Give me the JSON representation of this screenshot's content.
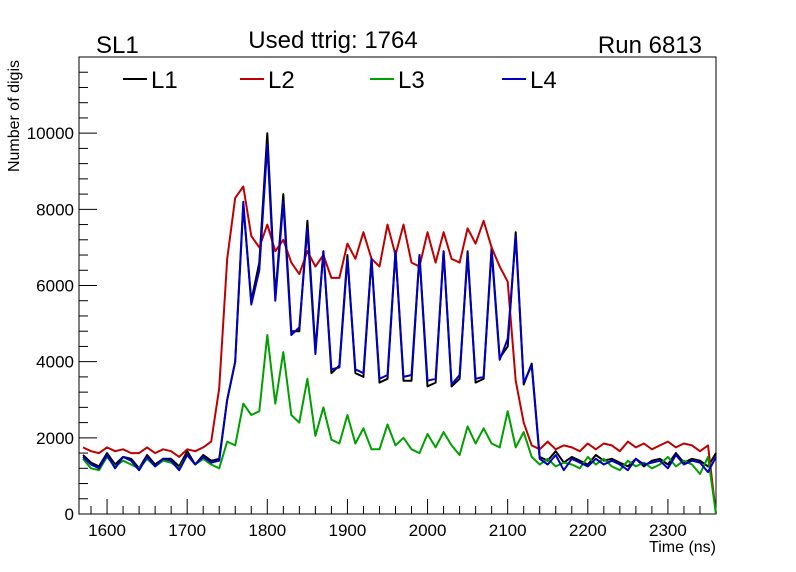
{
  "chart_data": {
    "type": "line",
    "title": "Used ttrig: 1764",
    "top_left_label": "SL1",
    "top_right_label": "Run 6813",
    "xlabel": "Time (ns)",
    "ylabel": "Number of digis",
    "xlim": [
      1565,
      2360
    ],
    "ylim": [
      0,
      12000
    ],
    "x_ticks": [
      1600,
      1700,
      1800,
      1900,
      2000,
      2100,
      2200,
      2300
    ],
    "y_ticks": [
      0,
      2000,
      4000,
      6000,
      8000,
      10000
    ],
    "legend_position": "top",
    "x": [
      1570,
      1580,
      1590,
      1600,
      1610,
      1620,
      1630,
      1640,
      1650,
      1660,
      1670,
      1680,
      1690,
      1700,
      1710,
      1720,
      1730,
      1740,
      1750,
      1760,
      1770,
      1780,
      1790,
      1800,
      1810,
      1820,
      1830,
      1840,
      1850,
      1860,
      1870,
      1880,
      1890,
      1900,
      1910,
      1920,
      1930,
      1940,
      1950,
      1960,
      1970,
      1980,
      1990,
      2000,
      2010,
      2020,
      2030,
      2040,
      2050,
      2060,
      2070,
      2080,
      2090,
      2100,
      2110,
      2120,
      2130,
      2140,
      2150,
      2160,
      2170,
      2180,
      2190,
      2200,
      2210,
      2220,
      2230,
      2240,
      2250,
      2260,
      2270,
      2280,
      2290,
      2300,
      2310,
      2320,
      2330,
      2340,
      2350,
      2360
    ],
    "series": [
      {
        "name": "L1",
        "color": "#000000",
        "values": [
          1550,
          1350,
          1250,
          1600,
          1300,
          1500,
          1450,
          1200,
          1550,
          1300,
          1450,
          1450,
          1250,
          1650,
          1300,
          1550,
          1400,
          1450,
          3000,
          4000,
          8100,
          5600,
          6600,
          10000,
          5700,
          8400,
          4800,
          4800,
          7700,
          4300,
          6900,
          3700,
          3900,
          6800,
          3700,
          3600,
          6700,
          3450,
          3550,
          6900,
          3500,
          3500,
          6800,
          3350,
          3450,
          6900,
          3350,
          3550,
          6900,
          3450,
          3550,
          7000,
          4100,
          4400,
          7400,
          3400,
          3950,
          1500,
          1400,
          1650,
          1350,
          1500,
          1400,
          1300,
          1550,
          1400,
          1450,
          1350,
          1250,
          1450,
          1250,
          1400,
          1450,
          1300,
          1600,
          1350,
          1450,
          1400,
          1250,
          1600
        ]
      },
      {
        "name": "L2",
        "color": "#c00000",
        "values": [
          1750,
          1650,
          1600,
          1750,
          1650,
          1700,
          1600,
          1600,
          1750,
          1600,
          1700,
          1650,
          1500,
          1700,
          1650,
          1750,
          1900,
          3300,
          6700,
          8300,
          8600,
          7300,
          7000,
          7600,
          6900,
          7200,
          6600,
          6300,
          6900,
          6500,
          6800,
          6200,
          6200,
          7100,
          6700,
          7400,
          6700,
          6500,
          7600,
          6800,
          7600,
          6600,
          6500,
          7400,
          6600,
          7400,
          6700,
          6600,
          7500,
          7100,
          7700,
          7000,
          6500,
          6100,
          3500,
          2400,
          1800,
          1700,
          1900,
          1700,
          1800,
          1750,
          1650,
          1850,
          1700,
          1850,
          1800,
          1650,
          1900,
          1750,
          1850,
          1700,
          1800,
          1900,
          1750,
          1850,
          1800,
          1650,
          1800,
          0
        ]
      },
      {
        "name": "L3",
        "color": "#00a000",
        "values": [
          1450,
          1200,
          1150,
          1500,
          1250,
          1400,
          1300,
          1200,
          1450,
          1250,
          1400,
          1350,
          1200,
          1550,
          1300,
          1450,
          1300,
          1200,
          1900,
          1800,
          2900,
          2600,
          2700,
          4700,
          2900,
          4250,
          2600,
          2400,
          3550,
          2050,
          2800,
          1950,
          1850,
          2600,
          1850,
          2250,
          1700,
          1700,
          2350,
          1800,
          2000,
          1700,
          1600,
          2100,
          1750,
          2150,
          1800,
          1550,
          2300,
          1850,
          2250,
          1850,
          1750,
          2700,
          1750,
          2150,
          1500,
          1300,
          1450,
          1250,
          1350,
          1300,
          1200,
          1500,
          1300,
          1450,
          1250,
          1150,
          1400,
          1250,
          1350,
          1200,
          1300,
          1500,
          1250,
          1400,
          1300,
          1050,
          1500,
          0
        ]
      },
      {
        "name": "L4",
        "color": "#0000c0",
        "values": [
          1500,
          1300,
          1200,
          1550,
          1200,
          1500,
          1400,
          1150,
          1500,
          1250,
          1450,
          1400,
          1150,
          1550,
          1300,
          1500,
          1350,
          1400,
          3000,
          4000,
          8200,
          5500,
          6400,
          9700,
          5600,
          8200,
          4700,
          4900,
          7500,
          4200,
          6900,
          3800,
          3850,
          6700,
          3800,
          3700,
          6700,
          3550,
          3650,
          6900,
          3600,
          3650,
          6800,
          3500,
          3550,
          6900,
          3400,
          3650,
          6800,
          3550,
          3600,
          6900,
          4050,
          4600,
          7300,
          3450,
          3900,
          1450,
          1300,
          1550,
          1150,
          1450,
          1350,
          1250,
          1450,
          1300,
          1400,
          1300,
          1150,
          1450,
          1300,
          1350,
          1400,
          1200,
          1550,
          1300,
          1400,
          1350,
          1100,
          1500
        ]
      }
    ]
  }
}
